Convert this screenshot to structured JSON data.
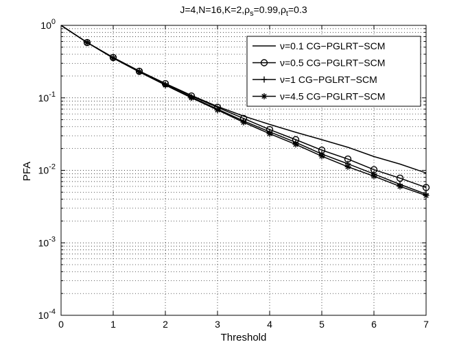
{
  "chart_data": {
    "type": "line",
    "title": "J=4,N=16,K=2,ρs=0.99,ρt=0.3",
    "title_parts": {
      "prefix": "J=4,N=16,K=2,",
      "rho": "ρ",
      "sub_s": "s",
      "mid": "=0.99,",
      "sub_t": "t",
      "suffix": "=0.3"
    },
    "xlabel": "Threshold",
    "ylabel": "PFA",
    "xlim": [
      0,
      7
    ],
    "ylim": [
      0.0001,
      1
    ],
    "yscale": "log",
    "grid": true,
    "legend_position": "top-right",
    "x_ticks": [
      "0",
      "1",
      "2",
      "3",
      "4",
      "5",
      "6",
      "7"
    ],
    "y_ticks": [
      {
        "base": "10",
        "exp": "0",
        "value": 1
      },
      {
        "base": "10",
        "exp": "-1",
        "value": 0.1
      },
      {
        "base": "10",
        "exp": "-2",
        "value": 0.01
      },
      {
        "base": "10",
        "exp": "-3",
        "value": 0.001
      },
      {
        "base": "10",
        "exp": "-4",
        "value": 0.0001
      }
    ],
    "series": [
      {
        "name": "ν=0.1 CG−PGLRT−SCM",
        "marker": "none",
        "x": [
          0,
          0.5,
          1,
          1.5,
          2,
          2.5,
          3,
          3.5,
          4,
          4.5,
          5,
          5.5,
          6,
          6.5,
          7
        ],
        "y": [
          1,
          0.58,
          0.36,
          0.235,
          0.158,
          0.108,
          0.076,
          0.056,
          0.043,
          0.0335,
          0.0265,
          0.0208,
          0.0155,
          0.0122,
          0.0092
        ]
      },
      {
        "name": "ν=0.5 CG−PGLRT−SCM",
        "marker": "circle",
        "x": [
          0,
          0.5,
          1,
          1.5,
          2,
          2.5,
          3,
          3.5,
          4,
          4.5,
          5,
          5.5,
          6,
          6.5,
          7
        ],
        "y": [
          1,
          0.58,
          0.36,
          0.233,
          0.157,
          0.106,
          0.074,
          0.052,
          0.0365,
          0.0265,
          0.019,
          0.0143,
          0.0102,
          0.0078,
          0.0058
        ]
      },
      {
        "name": "ν=1  CG−PGLRT−SCM",
        "marker": "plus",
        "x": [
          0,
          0.5,
          1,
          1.5,
          2,
          2.5,
          3,
          3.5,
          4,
          4.5,
          5,
          5.5,
          6,
          6.5,
          7
        ],
        "y": [
          1,
          0.58,
          0.355,
          0.23,
          0.152,
          0.102,
          0.07,
          0.048,
          0.034,
          0.0243,
          0.0168,
          0.0123,
          0.0089,
          0.0064,
          0.0047
        ]
      },
      {
        "name": "ν=4.5 CG−PGLRT−SCM",
        "marker": "star",
        "x": [
          0,
          0.5,
          1,
          1.5,
          2,
          2.5,
          3,
          3.5,
          4,
          4.5,
          5,
          5.5,
          6,
          6.5,
          7
        ],
        "y": [
          1,
          0.58,
          0.353,
          0.228,
          0.15,
          0.1,
          0.068,
          0.046,
          0.032,
          0.0228,
          0.0157,
          0.0112,
          0.0083,
          0.006,
          0.0045
        ]
      }
    ]
  }
}
